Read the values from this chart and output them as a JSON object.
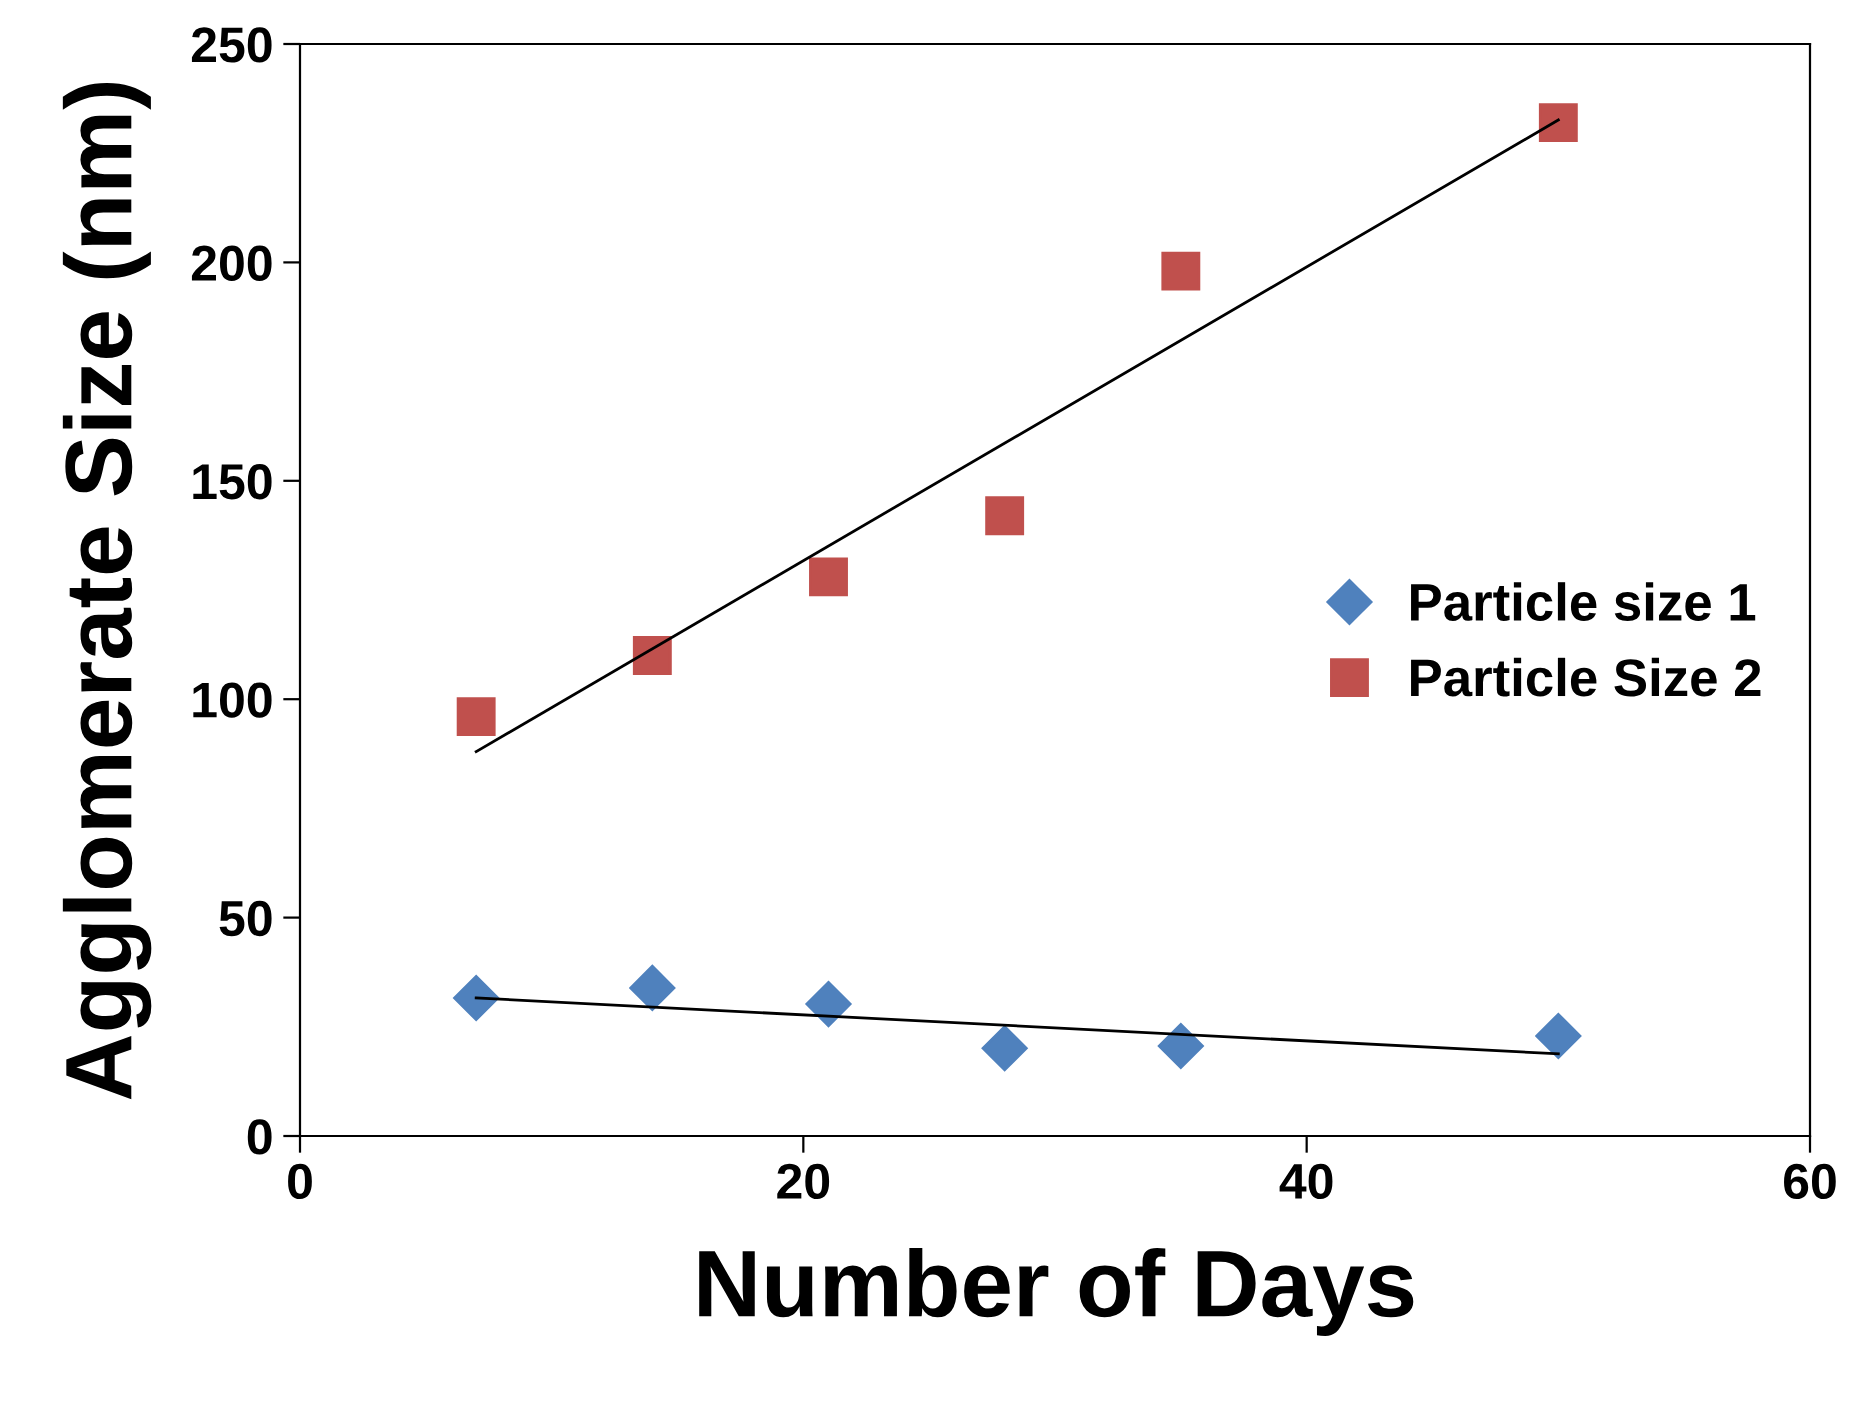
{
  "chart_data": {
    "type": "scatter",
    "xlabel": "Number of Days",
    "ylabel": "Agglomerate Size (nm)",
    "xlim": [
      0,
      60
    ],
    "xticks": [
      0,
      20,
      40,
      60
    ],
    "ylim": [
      0,
      250
    ],
    "yticks": [
      0,
      50,
      100,
      150,
      200,
      250
    ],
    "grid": false,
    "legend": "right",
    "series": [
      {
        "name": "Particle size 1",
        "color": "#4f81bd",
        "marker": "diamond",
        "x": [
          7,
          14,
          21,
          28,
          35,
          50
        ],
        "values": [
          31.6,
          33.9,
          30.2,
          20.1,
          20.6,
          22.9
        ]
      },
      {
        "name": "Particle Size 2",
        "color": "#c0504d",
        "marker": "square",
        "x": [
          7,
          14,
          21,
          28,
          35,
          50
        ],
        "values": [
          96,
          110,
          128,
          142,
          198,
          232
        ]
      },
      {
        "type": "line",
        "color": "#000000",
        "x": [
          7,
          50
        ],
        "values": [
          31.6,
          18.8
        ]
      },
      {
        "type": "line",
        "color": "#000000",
        "x": [
          7,
          50
        ],
        "values": [
          88,
          232.6
        ]
      }
    ]
  }
}
